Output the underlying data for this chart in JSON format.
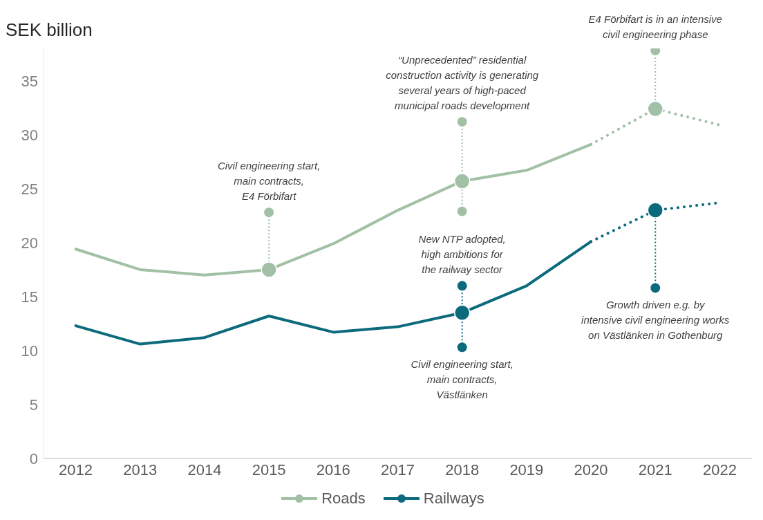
{
  "chart_data": {
    "type": "line",
    "ylabel": "SEK billion",
    "categories": [
      "2012",
      "2013",
      "2014",
      "2015",
      "2016",
      "2017",
      "2018",
      "2019",
      "2020",
      "2021",
      "2022"
    ],
    "ylim": [
      0,
      38
    ],
    "yticks": [
      0,
      5,
      10,
      15,
      20,
      25,
      30,
      35
    ],
    "legend": "bottom",
    "series": [
      {
        "name": "Roads",
        "color": "#a1c0a6",
        "line_style": "solid",
        "values": [
          19.4,
          17.5,
          17.0,
          17.5,
          19.9,
          23.0,
          25.7,
          26.7,
          29.1,
          null,
          null
        ]
      },
      {
        "name": "Railways",
        "color": "#0b6a7b",
        "line_style": "solid",
        "values": [
          12.3,
          10.6,
          11.2,
          13.2,
          11.7,
          12.2,
          13.5,
          16.0,
          20.1,
          null,
          null
        ]
      },
      {
        "color": "#a1c0a6",
        "line_style": "dotted",
        "values": [
          null,
          null,
          null,
          null,
          null,
          null,
          null,
          null,
          29.1,
          32.4,
          30.9
        ]
      },
      {
        "color": "#0b6a7b",
        "line_style": "dotted",
        "values": [
          null,
          null,
          null,
          null,
          null,
          null,
          null,
          null,
          20.1,
          23.0,
          23.7
        ]
      },
      {
        "type": "bubble",
        "color": "#a1c0a6",
        "values": [
          null,
          null,
          null,
          22.8,
          null,
          null,
          31.2,
          null,
          null,
          37.8,
          null
        ],
        "sizes": [
          null,
          null,
          null,
          0.4,
          null,
          null,
          0.4,
          null,
          null,
          0.4,
          null
        ]
      },
      {
        "type": "bubble",
        "color": "#a1c0a6",
        "values": [
          null,
          null,
          null,
          null,
          null,
          null,
          22.9,
          null,
          null,
          null,
          null
        ],
        "sizes": [
          null,
          null,
          null,
          null,
          null,
          null,
          0.4,
          null,
          null,
          null,
          null
        ]
      },
      {
        "type": "bubble",
        "color": "#0b6a7b",
        "values": [
          null,
          null,
          null,
          null,
          null,
          null,
          16.0,
          null,
          null,
          null,
          null
        ],
        "sizes": [
          null,
          null,
          null,
          null,
          null,
          null,
          0.4,
          null,
          null,
          null,
          null
        ]
      },
      {
        "type": "bubble",
        "color": "#0b6a7b",
        "values": [
          null,
          null,
          null,
          null,
          null,
          null,
          10.3,
          null,
          null,
          15.8,
          null
        ],
        "sizes": [
          null,
          null,
          null,
          null,
          null,
          null,
          0.4,
          null,
          null,
          0.4,
          null
        ]
      },
      {
        "type": "bubble",
        "color": "#a1c0a6",
        "values": [
          null,
          null,
          null,
          17.5,
          null,
          null,
          25.7,
          null,
          null,
          32.4,
          null
        ],
        "sizes": [
          null,
          null,
          null,
          1,
          null,
          null,
          1,
          null,
          null,
          1,
          null
        ]
      },
      {
        "type": "bubble",
        "color": "#0b6a7b",
        "values": [
          null,
          null,
          null,
          null,
          null,
          null,
          13.5,
          null,
          null,
          23.0,
          null
        ],
        "sizes": [
          null,
          null,
          null,
          null,
          null,
          null,
          1,
          null,
          null,
          1,
          null
        ]
      }
    ],
    "annotations": [
      {
        "text": "Civil engineering start,\nmain contracts,\nE4 Förbifart",
        "x": "2015",
        "y": 22.8
      },
      {
        "text": "“Unprecedented” residential\nconstruction activity is generating\nseveral years of high-paced\nmunicipal roads development",
        "x": "2018",
        "y": 31.2
      },
      {
        "text": "E4 Förbifart is in an intensive\ncivil engineering phase",
        "x": "2021",
        "y": 37.8
      },
      {
        "text": "New NTP adopted,\nhigh ambitions for\nthe railway sector",
        "x": "2018",
        "y": 16.0
      },
      {
        "text": "Civil engineering start,\nmain contracts,\nVästlänken",
        "x": "2018",
        "y": 10.3
      },
      {
        "text": "Growth driven e.g. by\nintensive civil engineering works\non Västlänken in Gothenburg",
        "x": "2021",
        "y": 15.8
      }
    ]
  }
}
